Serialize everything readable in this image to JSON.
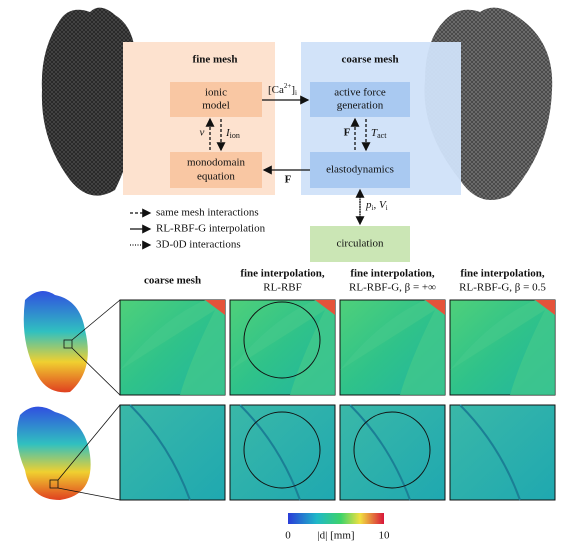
{
  "diagram": {
    "fine_mesh": {
      "title": "fine mesh",
      "ionic_model": [
        "ionic",
        "model"
      ],
      "monodomain_equation": [
        "monodomain",
        "equation"
      ],
      "potential": "v",
      "ionic_current": {
        "base": "I",
        "sub": "ion"
      }
    },
    "coarse_mesh": {
      "title": "coarse mesh",
      "active_force": [
        "active force",
        "generation"
      ],
      "elastodynamics": "elastodynamics",
      "force": "F",
      "active_tension": {
        "base": "T",
        "sub": "act"
      }
    },
    "calcium": {
      "open": "[Ca",
      "sup": "2+",
      "close": "]",
      "sub": "i"
    },
    "feedback": "F",
    "circulation": "circulation",
    "pressure_volume": {
      "p": "p",
      "p_sub": "i",
      "sep": ", ",
      "V": "V",
      "V_sub": "i"
    },
    "legend": [
      "same mesh interactions",
      "RL-RBF-G interpolation",
      "3D-0D interactions"
    ]
  },
  "comparison": {
    "columns": [
      [
        "coarse mesh"
      ],
      [
        "fine interpolation,",
        "RL-RBF"
      ],
      [
        "fine interpolation,",
        "RL-RBF-G, β = +∞"
      ],
      [
        "fine interpolation,",
        "RL-RBF-G, β = 0.5"
      ]
    ]
  },
  "colorbar": {
    "min": "0",
    "max": "10",
    "label": "|d| [mm]"
  }
}
